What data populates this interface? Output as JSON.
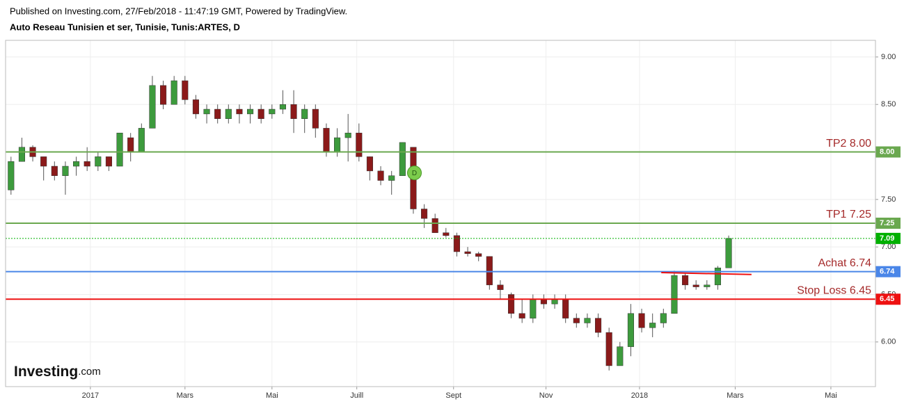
{
  "header": {
    "published": "Published on Investing.com, 27/Feb/2018 - 11:47:19 GMT, Powered by TradingView.",
    "instrument": "Auto Reseau Tunisien et ser, Tunisie, Tunis:ARTES, D",
    "logo": "Investing",
    "logo_suffix": ".com"
  },
  "chart_data": {
    "type": "candlestick",
    "open": [
      7.6,
      7.9,
      8.05,
      7.95,
      7.85,
      7.75,
      7.85,
      7.9,
      7.85,
      7.95,
      7.85,
      8.15,
      8.0,
      8.25,
      8.7,
      8.5,
      8.75,
      8.55,
      8.4,
      8.45,
      8.35,
      8.45,
      8.4,
      8.45,
      8.4,
      8.45,
      8.5,
      8.35,
      8.45,
      8.25,
      8.0,
      8.15,
      8.2,
      7.95,
      7.8,
      7.7,
      7.75,
      8.05,
      7.4,
      7.3,
      7.15,
      7.12,
      6.95,
      6.93,
      6.9,
      6.6,
      6.5,
      6.3,
      6.25,
      6.45,
      6.4,
      6.45,
      6.25,
      6.2,
      6.25,
      6.1,
      5.75,
      5.95,
      6.3,
      6.15,
      6.2,
      6.3,
      6.7,
      6.6,
      6.58,
      6.6,
      6.78
    ],
    "high": [
      7.95,
      8.15,
      8.07,
      7.95,
      7.9,
      7.9,
      7.95,
      8.05,
      8.0,
      7.95,
      8.2,
      8.2,
      8.3,
      8.8,
      8.75,
      8.8,
      8.8,
      8.6,
      8.5,
      8.5,
      8.5,
      8.5,
      8.5,
      8.5,
      8.5,
      8.65,
      8.65,
      8.5,
      8.5,
      8.3,
      8.25,
      8.4,
      8.3,
      7.95,
      7.85,
      7.8,
      8.1,
      8.05,
      7.45,
      7.35,
      7.2,
      7.15,
      7.0,
      6.95,
      6.9,
      6.65,
      6.52,
      6.45,
      6.5,
      6.5,
      6.5,
      6.5,
      6.3,
      6.3,
      6.3,
      6.15,
      6.0,
      6.4,
      6.35,
      6.3,
      6.35,
      6.75,
      6.72,
      6.65,
      6.65,
      6.8,
      7.12
    ],
    "low": [
      7.55,
      7.9,
      7.9,
      7.7,
      7.7,
      7.55,
      7.75,
      7.8,
      7.8,
      7.8,
      7.85,
      7.9,
      8.0,
      8.25,
      8.45,
      8.5,
      8.5,
      8.35,
      8.3,
      8.3,
      8.3,
      8.3,
      8.3,
      8.3,
      8.35,
      8.4,
      8.2,
      8.2,
      8.15,
      7.95,
      7.95,
      7.9,
      7.9,
      7.7,
      7.65,
      7.55,
      7.75,
      7.35,
      7.2,
      7.15,
      7.1,
      6.9,
      6.9,
      6.85,
      6.55,
      6.45,
      6.25,
      6.2,
      6.2,
      6.35,
      6.35,
      6.2,
      6.15,
      6.15,
      6.05,
      5.7,
      5.75,
      5.85,
      6.1,
      6.05,
      6.15,
      6.3,
      6.55,
      6.55,
      6.55,
      6.55,
      6.78
    ],
    "close": [
      7.9,
      8.05,
      7.95,
      7.85,
      7.75,
      7.85,
      7.9,
      7.85,
      7.95,
      7.85,
      8.2,
      8.0,
      8.25,
      8.7,
      8.5,
      8.75,
      8.55,
      8.4,
      8.45,
      8.35,
      8.45,
      8.4,
      8.45,
      8.35,
      8.45,
      8.5,
      8.35,
      8.45,
      8.25,
      8.0,
      8.15,
      8.2,
      7.95,
      7.8,
      7.7,
      7.75,
      8.1,
      7.4,
      7.3,
      7.15,
      7.12,
      6.95,
      6.93,
      6.9,
      6.6,
      6.55,
      6.3,
      6.25,
      6.45,
      6.4,
      6.45,
      6.25,
      6.2,
      6.25,
      6.1,
      5.75,
      5.95,
      6.3,
      6.15,
      6.2,
      6.3,
      6.7,
      6.6,
      6.58,
      6.6,
      6.78,
      7.09
    ],
    "up_color": "#3d9b3d",
    "down_color": "#8b1a1a",
    "xlim": [
      0,
      80
    ],
    "ylim": [
      5.53,
      9.175
    ],
    "xticks": [
      {
        "value": 7.8,
        "label": "2017"
      },
      {
        "value": 16.5,
        "label": "Mars"
      },
      {
        "value": 24.5,
        "label": "Mai"
      },
      {
        "value": 32.3,
        "label": "Juill"
      },
      {
        "value": 41.2,
        "label": "Sept"
      },
      {
        "value": 49.7,
        "label": "Nov"
      },
      {
        "value": 58.3,
        "label": "2018"
      },
      {
        "value": 67.1,
        "label": "Mars"
      },
      {
        "value": 75.9,
        "label": "Mai"
      }
    ],
    "yticks": [
      {
        "value": 6,
        "label": "6.00"
      },
      {
        "value": 6.5,
        "label": "6.50"
      },
      {
        "value": 7,
        "label": "7.00"
      },
      {
        "value": 7.5,
        "label": "7.50"
      },
      {
        "value": 8,
        "label": "8.00"
      },
      {
        "value": 8.5,
        "label": "8.50"
      },
      {
        "value": 9,
        "label": "9.00"
      }
    ],
    "grid": true,
    "levels": [
      {
        "value": 8,
        "label": "8.00",
        "text": "TP2 8.00",
        "color": "#6aa84f"
      },
      {
        "value": 7.25,
        "label": "7.25",
        "text": "TP1 7.25",
        "color": "#6aa84f"
      },
      {
        "value": 6.74,
        "label": "6.74",
        "text": "Achat 6.74",
        "color": "#4a86e8"
      },
      {
        "value": 6.45,
        "label": "6.45",
        "text": "Stop Loss 6.45",
        "color": "#ee1111"
      }
    ],
    "last_price": {
      "value": 7.09,
      "label": "7.09",
      "color": "#00b000"
    },
    "trendline": {
      "x": [
        60.3,
        68.6
      ],
      "y": [
        6.73,
        6.71
      ],
      "color": "#ee1111"
    },
    "marker": {
      "x": 37.6,
      "y": 7.78,
      "label": "D",
      "color": "#7ccc4c"
    }
  }
}
